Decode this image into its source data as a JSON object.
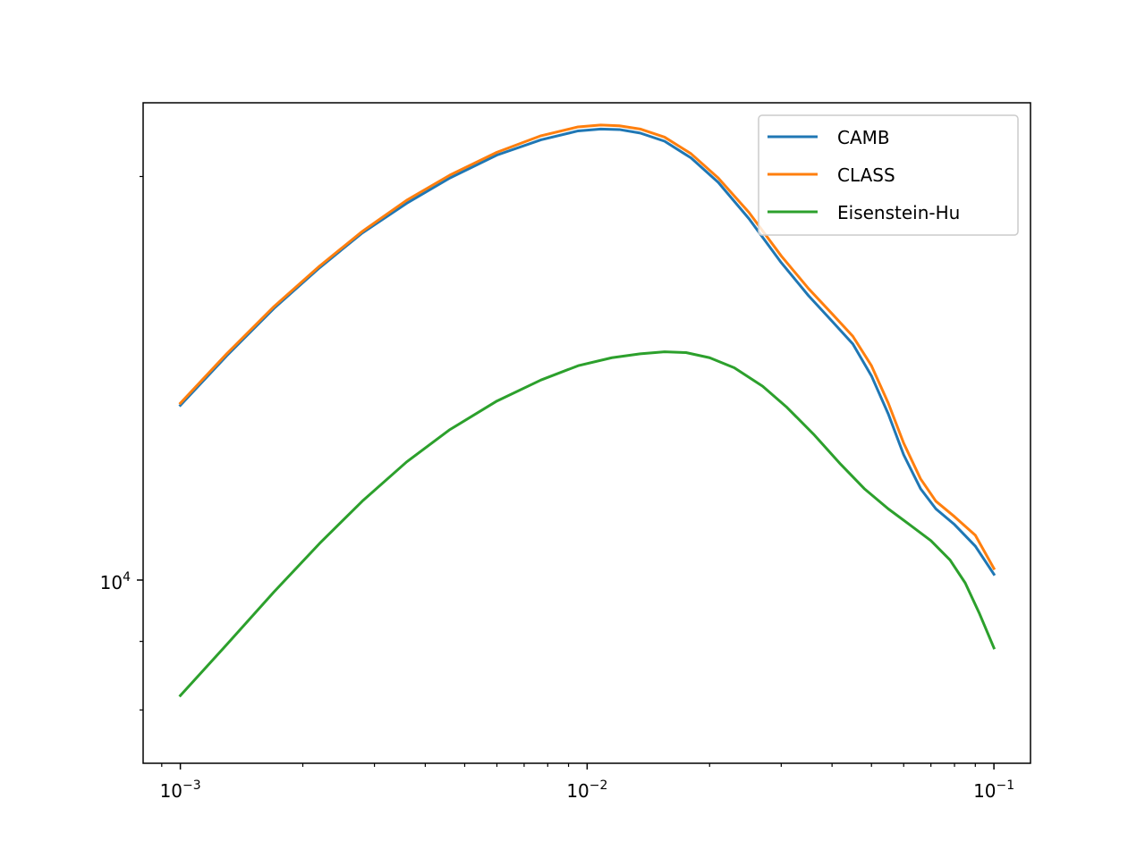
{
  "chart_data": {
    "type": "line",
    "title": "",
    "xlabel": "",
    "ylabel": "",
    "xscale": "log",
    "yscale": "log",
    "xlim": [
      0.00081,
      0.123
    ],
    "ylim": [
      7300,
      22700
    ],
    "grid": false,
    "legend": "top-right",
    "x_ticks": [
      {
        "value": 0.001,
        "base": "10",
        "exp": "−3"
      },
      {
        "value": 0.01,
        "base": "10",
        "exp": "−2"
      },
      {
        "value": 0.1,
        "base": "10",
        "exp": "−1"
      }
    ],
    "y_ticks": [
      {
        "value": 10000,
        "base": "10",
        "exp": "4"
      }
    ],
    "series": [
      {
        "name": "CAMB",
        "color": "#1f77b4",
        "x": [
          0.001,
          0.0013,
          0.0017,
          0.0022,
          0.0028,
          0.0036,
          0.0046,
          0.006,
          0.0077,
          0.0095,
          0.0108,
          0.012,
          0.0135,
          0.0155,
          0.018,
          0.021,
          0.025,
          0.03,
          0.035,
          0.04,
          0.045,
          0.05,
          0.055,
          0.06,
          0.066,
          0.072,
          0.08,
          0.09,
          0.1
        ],
        "y": [
          13500,
          14700,
          15950,
          17100,
          18150,
          19100,
          19950,
          20750,
          21300,
          21630,
          21700,
          21680,
          21550,
          21250,
          20650,
          19800,
          18600,
          17250,
          16300,
          15600,
          15000,
          14200,
          13300,
          12400,
          11700,
          11300,
          11000,
          10600,
          10100
        ]
      },
      {
        "name": "CLASS",
        "color": "#ff7f0e",
        "x": [
          0.001,
          0.0013,
          0.0017,
          0.0022,
          0.0028,
          0.0036,
          0.0046,
          0.006,
          0.0077,
          0.0095,
          0.0108,
          0.012,
          0.0135,
          0.0155,
          0.018,
          0.021,
          0.025,
          0.03,
          0.035,
          0.04,
          0.045,
          0.05,
          0.055,
          0.06,
          0.066,
          0.072,
          0.08,
          0.09,
          0.1
        ],
        "y": [
          13550,
          14750,
          16000,
          17150,
          18200,
          19200,
          20050,
          20850,
          21450,
          21780,
          21850,
          21820,
          21700,
          21400,
          20800,
          19950,
          18800,
          17450,
          16500,
          15800,
          15200,
          14450,
          13550,
          12650,
          11900,
          11450,
          11150,
          10800,
          10200
        ]
      },
      {
        "name": "Eisenstein-Hu",
        "color": "#2ca02c",
        "x": [
          0.001,
          0.0013,
          0.0017,
          0.0022,
          0.0028,
          0.0036,
          0.0046,
          0.006,
          0.0077,
          0.0095,
          0.0115,
          0.0135,
          0.0155,
          0.0175,
          0.02,
          0.023,
          0.027,
          0.031,
          0.036,
          0.042,
          0.048,
          0.055,
          0.062,
          0.07,
          0.078,
          0.085,
          0.092,
          0.1
        ],
        "y": [
          8200,
          8950,
          9800,
          10650,
          11450,
          12250,
          12950,
          13600,
          14100,
          14450,
          14650,
          14750,
          14800,
          14780,
          14650,
          14400,
          13950,
          13450,
          12850,
          12200,
          11700,
          11300,
          11000,
          10700,
          10350,
          9950,
          9450,
          8900
        ]
      }
    ]
  }
}
